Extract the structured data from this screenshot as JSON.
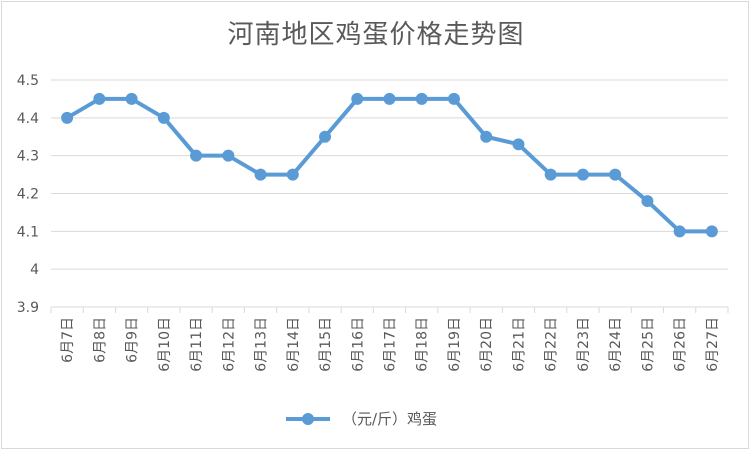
{
  "chart_data": {
    "type": "line",
    "title": "河南地区鸡蛋价格走势图",
    "xlabel": "",
    "ylabel": "",
    "categories": [
      "6月7日",
      "6月8日",
      "6月9日",
      "6月10日",
      "6月11日",
      "6月12日",
      "6月13日",
      "6月14日",
      "6月15日",
      "6月16日",
      "6月17日",
      "6月18日",
      "6月19日",
      "6月20日",
      "6月21日",
      "6月22日",
      "6月23日",
      "6月24日",
      "6月25日",
      "6月26日",
      "6月27日"
    ],
    "series": [
      {
        "name": "（元/斤）鸡蛋",
        "values": [
          4.4,
          4.45,
          4.45,
          4.4,
          4.3,
          4.3,
          4.25,
          4.25,
          4.35,
          4.45,
          4.45,
          4.45,
          4.45,
          4.35,
          4.33,
          4.25,
          4.25,
          4.25,
          4.18,
          4.1,
          4.1
        ]
      }
    ],
    "ylim": [
      3.9,
      4.5
    ],
    "yticks": [
      "3.9",
      "4",
      "4.1",
      "4.2",
      "4.3",
      "4.4",
      "4.5"
    ],
    "grid": true,
    "legend": "bottom-center",
    "line_color": "#5b9bd5",
    "grid_color": "#d9d9d9"
  }
}
